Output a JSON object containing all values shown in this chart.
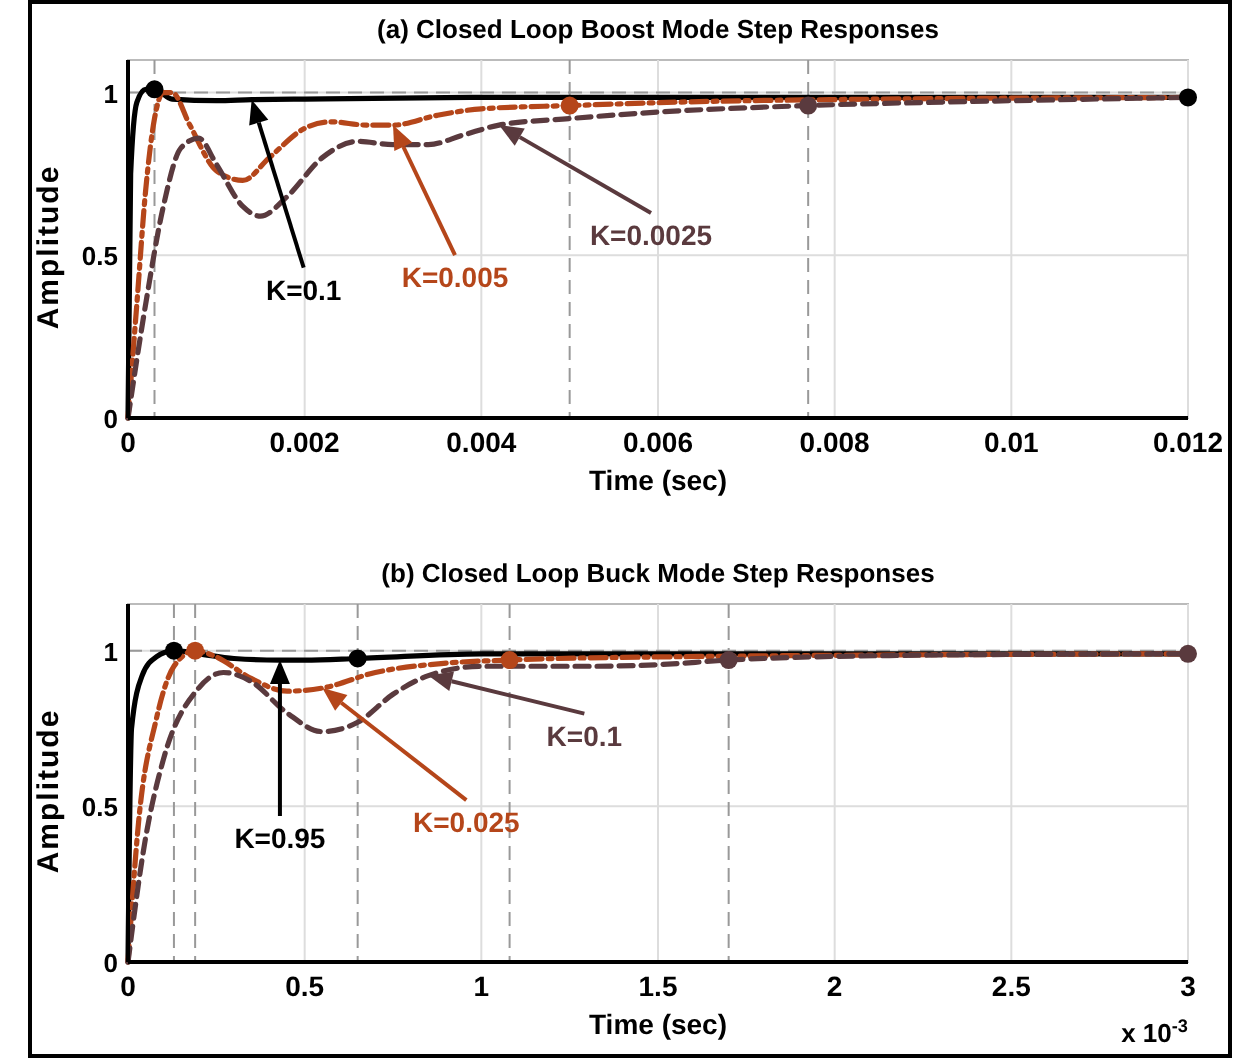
{
  "chart_data": [
    {
      "type": "line",
      "title": "(a) Closed Loop Boost Mode Step Responses",
      "xlabel": "Time (sec)",
      "ylabel": "Amplitude",
      "xlim": [
        0,
        0.012
      ],
      "xticks": [
        0,
        0.002,
        0.004,
        0.006,
        0.008,
        0.01,
        0.012
      ],
      "ylim": [
        0,
        1.1
      ],
      "yticks": [
        0,
        0.5,
        1
      ],
      "grid": true,
      "series": [
        {
          "name": "K=0.1",
          "color": "#000000",
          "line_style": "solid",
          "x": [
            0,
            3e-05,
            0.0001,
            0.0002,
            0.0003,
            0.0005,
            0.001,
            0.0014,
            0.002,
            0.004,
            0.012
          ],
          "values": [
            0,
            0.75,
            0.97,
            1.01,
            1.01,
            0.98,
            0.975,
            0.978,
            0.98,
            0.985,
            0.985
          ]
        },
        {
          "name": "K=0.005",
          "color": "#b5461a",
          "line_style": "dashdot",
          "x": [
            0,
            0.0001,
            0.0002,
            0.0003,
            0.0004,
            0.0005,
            0.0007,
            0.001,
            0.0013,
            0.0016,
            0.002,
            0.0023,
            0.0027,
            0.003,
            0.0035,
            0.004,
            0.005,
            0.007,
            0.012
          ],
          "values": [
            0,
            0.35,
            0.7,
            0.92,
            1.0,
            1.0,
            0.9,
            0.76,
            0.73,
            0.8,
            0.89,
            0.91,
            0.9,
            0.9,
            0.93,
            0.95,
            0.96,
            0.975,
            0.985
          ]
        },
        {
          "name": "K=0.0025",
          "color": "#5a3a3e",
          "line_style": "dashed",
          "x": [
            0,
            0.0002,
            0.0004,
            0.0006,
            0.0008,
            0.001,
            0.0013,
            0.0015,
            0.0018,
            0.0022,
            0.0026,
            0.003,
            0.0034,
            0.0038,
            0.0042,
            0.005,
            0.006,
            0.0077,
            0.01,
            0.012
          ],
          "values": [
            0,
            0.35,
            0.65,
            0.83,
            0.86,
            0.78,
            0.65,
            0.62,
            0.68,
            0.8,
            0.85,
            0.84,
            0.84,
            0.87,
            0.9,
            0.92,
            0.94,
            0.96,
            0.975,
            0.985
          ]
        },
        {
          "type": "scatter",
          "color": "#000000",
          "marker": "circle",
          "x": [
            0.0003,
            0.012
          ],
          "values": [
            1.01,
            0.985
          ]
        },
        {
          "type": "scatter",
          "color": "#b5461a",
          "marker": "circle",
          "x": [
            0.005
          ],
          "values": [
            0.96
          ]
        },
        {
          "type": "scatter",
          "color": "#5a3a3e",
          "marker": "circle",
          "x": [
            0.0077
          ],
          "values": [
            0.96
          ]
        }
      ],
      "ref_lines": [
        {
          "axis": "y",
          "value": 1,
          "color": "#999999",
          "line_style": "dashed"
        },
        {
          "axis": "x",
          "value": 0.0003,
          "color": "#999999",
          "line_style": "dashed"
        },
        {
          "axis": "x",
          "value": 0.005,
          "color": "#999999",
          "line_style": "dashed"
        },
        {
          "axis": "x",
          "value": 0.0077,
          "color": "#999999",
          "line_style": "dashed"
        }
      ]
    },
    {
      "type": "line",
      "title": "(b) Closed Loop Buck Mode Step Responses",
      "xlabel": "Time (sec)",
      "ylabel": "Amplitude",
      "xlim": [
        0,
        3
      ],
      "xticks": [
        0,
        0.5,
        1,
        1.5,
        2,
        2.5,
        3
      ],
      "ylim": [
        0,
        1.15
      ],
      "yticks": [
        0,
        0.5,
        1
      ],
      "grid": true,
      "annotations": [
        "x 10$^{-3}$"
      ],
      "series": [
        {
          "name": "K=0.95",
          "color": "#000000",
          "line_style": "solid",
          "x": [
            0,
            0.01,
            0.04,
            0.08,
            0.13,
            0.2,
            0.3,
            0.43,
            0.5,
            0.65,
            1,
            3
          ],
          "values": [
            0,
            0.75,
            0.92,
            0.98,
            1.0,
            0.99,
            0.975,
            0.97,
            0.97,
            0.975,
            0.99,
            0.99
          ]
        },
        {
          "name": "K=0.025",
          "color": "#b5461a",
          "line_style": "dashdot",
          "x": [
            0,
            0.03,
            0.08,
            0.13,
            0.19,
            0.25,
            0.35,
            0.45,
            0.55,
            0.7,
            0.9,
            1.08,
            1.5,
            3
          ],
          "values": [
            0,
            0.45,
            0.78,
            0.95,
            1.0,
            0.98,
            0.91,
            0.87,
            0.88,
            0.93,
            0.96,
            0.97,
            0.98,
            0.99
          ]
        },
        {
          "name": "K=0.1",
          "color": "#5a3a3e",
          "line_style": "dashed",
          "x": [
            0,
            0.05,
            0.1,
            0.2,
            0.27,
            0.35,
            0.45,
            0.55,
            0.65,
            0.75,
            0.85,
            1,
            1.3,
            1.5,
            1.7,
            2.2,
            3
          ],
          "values": [
            0,
            0.4,
            0.65,
            0.88,
            0.93,
            0.9,
            0.8,
            0.74,
            0.77,
            0.86,
            0.92,
            0.95,
            0.95,
            0.955,
            0.97,
            0.985,
            0.99
          ]
        },
        {
          "type": "scatter",
          "color": "#000000",
          "marker": "circle",
          "x": [
            0.13,
            0.65
          ],
          "values": [
            1.0,
            0.975
          ]
        },
        {
          "type": "scatter",
          "color": "#b5461a",
          "marker": "circle",
          "x": [
            0.19,
            1.08
          ],
          "values": [
            1.0,
            0.97
          ]
        },
        {
          "type": "scatter",
          "color": "#5a3a3e",
          "marker": "circle",
          "x": [
            1.7,
            3
          ],
          "values": [
            0.97,
            0.99
          ]
        }
      ],
      "ref_lines": [
        {
          "axis": "y",
          "value": 1,
          "color": "#999999",
          "line_style": "dashed"
        },
        {
          "axis": "x",
          "value": 0.13,
          "color": "#999999",
          "line_style": "dashed"
        },
        {
          "axis": "x",
          "value": 0.19,
          "color": "#999999",
          "line_style": "dashed"
        },
        {
          "axis": "x",
          "value": 0.65,
          "color": "#999999",
          "line_style": "dashed"
        },
        {
          "axis": "x",
          "value": 1.08,
          "color": "#999999",
          "line_style": "dashed"
        },
        {
          "axis": "x",
          "value": 1.7,
          "color": "#999999",
          "line_style": "dashed"
        }
      ]
    }
  ]
}
